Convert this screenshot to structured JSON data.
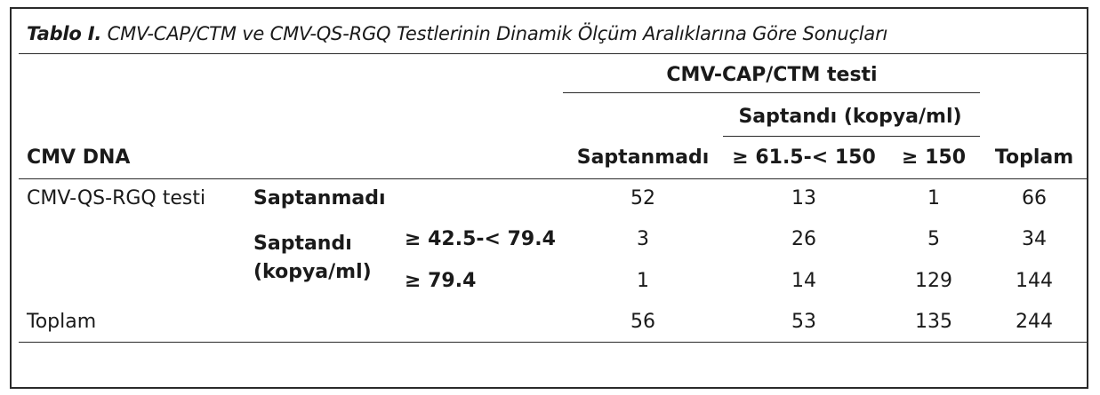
{
  "caption": {
    "label": "Tablo I.",
    "text": "CMV-CAP/CTM ve CMV-QS-RGQ Testlerinin Dinamik Ölçüm Aralıklarına Göre Sonuçları"
  },
  "header": {
    "group_title": "CMV-CAP/CTM testi",
    "subgroup_title": "Saptandı (kopya/ml)",
    "row_header": "CMV DNA",
    "columns": [
      "Saptanmadı",
      "≥ 61.5-< 150",
      "≥ 150",
      "Toplam"
    ]
  },
  "rows": {
    "test_label": "CMV-QS-RGQ testi",
    "not_detected_label": "Saptanmadı",
    "detected_label_line1": "Saptandı",
    "detected_label_line2": "(kopya/ml)",
    "range1_label": "≥ 42.5-< 79.4",
    "range2_label": "≥ 79.4",
    "total_label": "Toplam",
    "values": [
      [
        "52",
        "13",
        "1",
        "66"
      ],
      [
        "3",
        "26",
        "5",
        "34"
      ],
      [
        "1",
        "14",
        "129",
        "144"
      ],
      [
        "56",
        "53",
        "135",
        "244"
      ]
    ]
  }
}
